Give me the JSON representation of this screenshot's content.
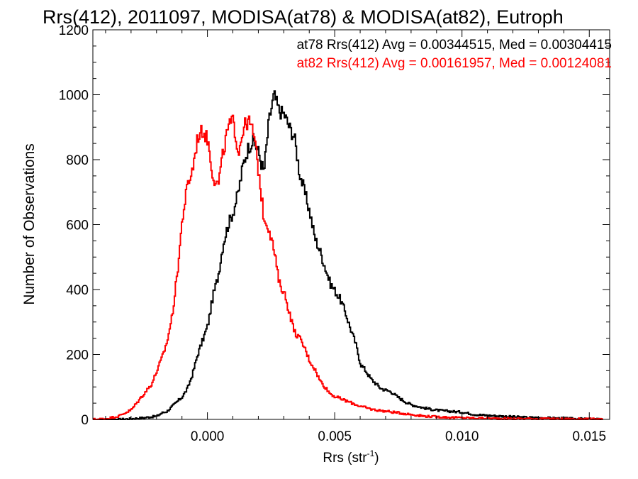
{
  "chart_data": {
    "type": "line",
    "title": "Rrs(412), 2011097, MODISA(at78) & MODISA(at82), Eutroph",
    "xlabel": "Rrs (str",
    "xlabel_sup": "-1",
    "xlabel_end": ")",
    "ylabel": "Number of Observations",
    "xlim": [
      -0.0045,
      0.0158
    ],
    "ylim": [
      0,
      1200
    ],
    "xticks": [
      0.0,
      0.005,
      0.01,
      0.015
    ],
    "xtick_labels": [
      "0.000",
      "0.005",
      "0.010",
      "0.015"
    ],
    "yticks": [
      0,
      200,
      400,
      600,
      800,
      1000,
      1200
    ],
    "ytick_labels": [
      "0",
      "200",
      "400",
      "600",
      "800",
      "1000",
      "1200"
    ],
    "grid": false,
    "annotations": [
      {
        "text": "at78 Rrs(412) Avg = 0.00344515, Med = 0.00304415",
        "color": "#000000"
      },
      {
        "text": "at82 Rrs(412) Avg = 0.00161957, Med = 0.00124081",
        "color": "#ff0000"
      }
    ],
    "series": [
      {
        "color": "#000000",
        "x": [
          -0.0045,
          -0.004,
          -0.0035,
          -0.003,
          -0.0025,
          -0.002,
          -0.0018,
          -0.0016,
          -0.0014,
          -0.0012,
          -0.001,
          -0.0008,
          -0.0006,
          -0.0004,
          -0.0002,
          0.0,
          0.0002,
          0.0004,
          0.0006,
          0.0008,
          0.001,
          0.0012,
          0.0014,
          0.0016,
          0.0018,
          0.002,
          0.0022,
          0.0024,
          0.0026,
          0.0028,
          0.003,
          0.0032,
          0.0034,
          0.0036,
          0.0038,
          0.004,
          0.0042,
          0.0044,
          0.0046,
          0.0048,
          0.005,
          0.0052,
          0.0054,
          0.0056,
          0.0058,
          0.006,
          0.0062,
          0.0064,
          0.0066,
          0.0068,
          0.007,
          0.0072,
          0.0074,
          0.0076,
          0.0078,
          0.008,
          0.0085,
          0.009,
          0.0095,
          0.01,
          0.0105,
          0.011,
          0.0115,
          0.012,
          0.0125,
          0.013,
          0.0135,
          0.014,
          0.0145,
          0.015,
          0.0155
        ],
        "y": [
          0,
          0,
          0,
          2,
          5,
          10,
          20,
          25,
          40,
          55,
          70,
          95,
          140,
          200,
          245,
          290,
          380,
          440,
          540,
          600,
          640,
          700,
          790,
          840,
          860,
          820,
          760,
          920,
          1000,
          950,
          940,
          900,
          870,
          760,
          700,
          640,
          560,
          520,
          470,
          420,
          395,
          370,
          330,
          280,
          235,
          170,
          150,
          125,
          110,
          95,
          90,
          85,
          72,
          62,
          52,
          45,
          35,
          28,
          25,
          22,
          15,
          12,
          10,
          8,
          6,
          5,
          4,
          3,
          2,
          1,
          0
        ]
      },
      {
        "color": "#ff0000",
        "x": [
          -0.0045,
          -0.004,
          -0.0035,
          -0.003,
          -0.0028,
          -0.0026,
          -0.0024,
          -0.0022,
          -0.002,
          -0.0018,
          -0.0016,
          -0.0014,
          -0.0012,
          -0.001,
          -0.0008,
          -0.0006,
          -0.0004,
          -0.0002,
          0.0,
          0.0002,
          0.0004,
          0.0006,
          0.0008,
          0.001,
          0.0012,
          0.0014,
          0.0016,
          0.0018,
          0.002,
          0.0022,
          0.0024,
          0.0026,
          0.0028,
          0.003,
          0.0032,
          0.0034,
          0.0036,
          0.0038,
          0.004,
          0.0042,
          0.0044,
          0.0046,
          0.0048,
          0.005,
          0.0055,
          0.006,
          0.0065,
          0.007,
          0.0075,
          0.008,
          0.0085,
          0.009,
          0.0095,
          0.01,
          0.0105,
          0.011,
          0.012,
          0.013,
          0.014,
          0.015,
          0.0155
        ],
        "y": [
          0,
          2,
          10,
          30,
          50,
          70,
          90,
          110,
          150,
          190,
          240,
          320,
          450,
          620,
          720,
          770,
          870,
          890,
          860,
          750,
          720,
          820,
          900,
          920,
          820,
          900,
          920,
          880,
          760,
          620,
          590,
          520,
          420,
          390,
          330,
          270,
          250,
          220,
          180,
          155,
          120,
          100,
          80,
          70,
          55,
          40,
          30,
          25,
          20,
          15,
          10,
          8,
          6,
          5,
          4,
          3,
          2,
          2,
          1,
          1,
          0
        ]
      }
    ]
  }
}
